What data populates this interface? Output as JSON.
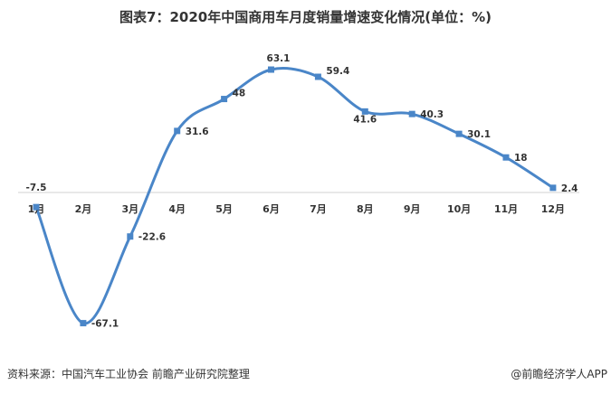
{
  "chart_data": {
    "type": "line",
    "title": "图表7：2020年中国商用车月度销量增速变化情况(单位：%)",
    "categories": [
      "1月",
      "2月",
      "3月",
      "4月",
      "5月",
      "6月",
      "7月",
      "8月",
      "9月",
      "10月",
      "11月",
      "12月"
    ],
    "series": [
      {
        "values": [
          -7.5,
          -67.1,
          -22.6,
          31.6,
          48,
          63.1,
          59.4,
          41.6,
          40.3,
          30.1,
          18,
          2.4
        ]
      }
    ],
    "data_labels": [
      "-7.5",
      "-67.1",
      "-22.6",
      "31.6",
      "48",
      "63.1",
      "59.4",
      "41.6",
      "40.3",
      "30.1",
      "18",
      "2.4"
    ],
    "line_style": "smooth",
    "marker": "square",
    "color": "#4a86c8",
    "grid": false,
    "legend": "none"
  },
  "footer": {
    "source": "资料来源：中国汽车工业协会 前瞻产业研究院整理",
    "credit": "@前瞻经济学人APP"
  }
}
